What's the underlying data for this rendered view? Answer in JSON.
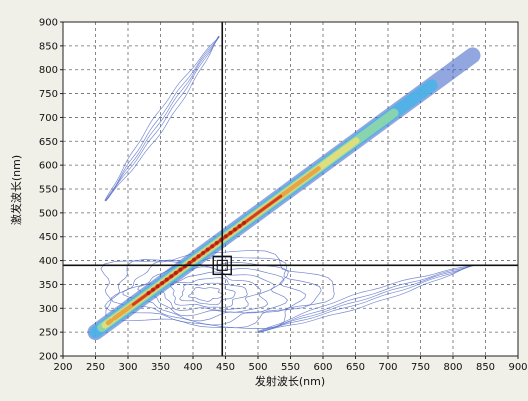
{
  "chart_data": {
    "type": "heatmap",
    "title": "",
    "xlabel": "发射波长(nm)",
    "ylabel": "激发波长(nm)",
    "xlim": [
      200,
      900
    ],
    "ylim": [
      200,
      900
    ],
    "x_ticks": [
      "200",
      "250",
      "300",
      "350",
      "400",
      "450",
      "500",
      "550",
      "600",
      "650",
      "700",
      "750",
      "800",
      "850",
      "900"
    ],
    "y_ticks": [
      "200",
      "250",
      "300",
      "350",
      "400",
      "450",
      "500",
      "550",
      "600",
      "650",
      "700",
      "750",
      "800",
      "850",
      "900"
    ],
    "grid": true,
    "grid_style": "dashed",
    "crosshair": {
      "x": 445,
      "y": 390
    },
    "color_scale": [
      "#3a5fc8",
      "#4cb3e8",
      "#8fd8a8",
      "#e8e07a",
      "#e8a040",
      "#d03020"
    ],
    "features": [
      {
        "name": "first-order Rayleigh scatter",
        "type": "band",
        "start": [
          250,
          250
        ],
        "end": [
          830,
          830
        ],
        "peak_region": [
          [
            330,
            330
          ],
          [
            480,
            480
          ]
        ],
        "peak_intensity": "high"
      },
      {
        "name": "fluorescence contours",
        "type": "contour-cloud",
        "center": [
          420,
          330
        ],
        "extent": {
          "x": [
            270,
            530
          ],
          "y": [
            250,
            440
          ]
        }
      },
      {
        "name": "second-order scatter (upper)",
        "type": "contour-line",
        "start": [
          265,
          525
        ],
        "end": [
          440,
          870
        ]
      },
      {
        "name": "second-order scatter (lower)",
        "type": "contour-line",
        "start": [
          500,
          250
        ],
        "end": [
          830,
          390
        ]
      }
    ]
  }
}
